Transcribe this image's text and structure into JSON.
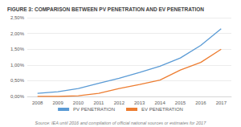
{
  "chart_data": {
    "type": "line",
    "title": "FIGURE 3: COMPARISON BETWEEN PV PENETRATION AND EV PENETRATION",
    "source": "Source: IEA until 2016 and compilation of official national sources or estimates for 2017",
    "categories": [
      "2008",
      "2009",
      "2010",
      "2011",
      "2012",
      "2013",
      "2014",
      "2015",
      "2016",
      "2017"
    ],
    "series": [
      {
        "name": "PV PENETRATION",
        "color": "#5b9bd5",
        "values": [
          0.1,
          0.15,
          0.25,
          0.42,
          0.58,
          0.76,
          0.96,
          1.22,
          1.62,
          2.15
        ]
      },
      {
        "name": "EV PENETRATION",
        "color": "#ed7d31",
        "values": [
          0.0,
          0.0,
          0.02,
          0.1,
          0.25,
          0.38,
          0.52,
          0.84,
          1.08,
          1.5
        ]
      }
    ],
    "ylim": [
      0,
      2.5
    ],
    "yticks": [
      {
        "value": 0,
        "label": "0,00%"
      },
      {
        "value": 0.5,
        "label": "0,50%"
      },
      {
        "value": 1,
        "label": "1,00%"
      },
      {
        "value": 1.5,
        "label": "1,50%"
      },
      {
        "value": 2,
        "label": "2,00%"
      },
      {
        "value": 2.5,
        "label": "2,50%"
      }
    ],
    "grid": true,
    "legend": "bottom"
  }
}
